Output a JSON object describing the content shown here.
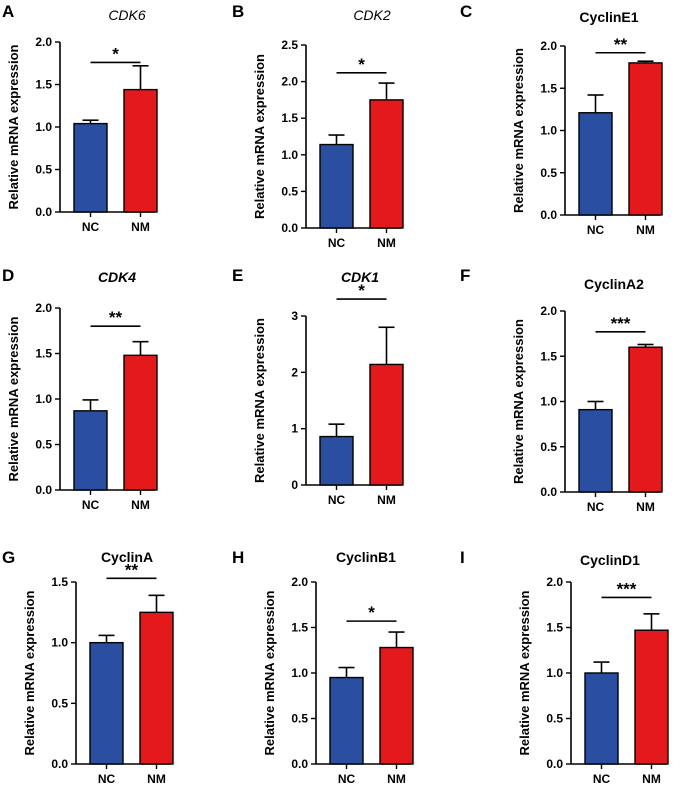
{
  "figure": {
    "title": ""
  },
  "colors": {
    "NC": "#2a4ea0",
    "NM": "#e3191c",
    "axis": "#000000"
  },
  "chart_data": [
    {
      "panel": "A",
      "type": "bar",
      "title": "CDK6",
      "title_style": "italic",
      "categories": [
        "NC",
        "NM"
      ],
      "values": [
        1.04,
        1.44
      ],
      "errors": [
        0.04,
        0.28
      ],
      "ylabel": "Relative mRNA expression",
      "ylim": [
        0,
        2.0
      ],
      "yticks": [
        0.0,
        0.5,
        1.0,
        1.5,
        2.0
      ],
      "yticklabels": [
        "0.0",
        "0.5",
        "1.0",
        "1.5",
        "2.0"
      ],
      "significance": "*",
      "sig_y": 1.76
    },
    {
      "panel": "B",
      "type": "bar",
      "title": "CDK2",
      "title_style": "italic",
      "categories": [
        "NC",
        "NM"
      ],
      "values": [
        1.14,
        1.75
      ],
      "errors": [
        0.13,
        0.23
      ],
      "ylabel": "Relative mRNA expression",
      "ylim": [
        0,
        2.5
      ],
      "yticks": [
        0.0,
        0.5,
        1.0,
        1.5,
        2.0,
        2.5
      ],
      "yticklabels": [
        "0.0",
        "0.5",
        "1.0",
        "1.5",
        "2.0",
        "2.5"
      ],
      "significance": "*",
      "sig_y": 2.12
    },
    {
      "panel": "C",
      "type": "bar",
      "title": "CyclinE1",
      "title_style": "bold",
      "categories": [
        "NC",
        "NM"
      ],
      "values": [
        1.21,
        1.8
      ],
      "errors": [
        0.21,
        0.02
      ],
      "ylabel": "Relative mRNA expression",
      "ylim": [
        0,
        2.0
      ],
      "yticks": [
        0.0,
        0.5,
        1.0,
        1.5,
        2.0
      ],
      "yticklabels": [
        "0.0",
        "0.5",
        "1.0",
        "1.5",
        "2.0"
      ],
      "significance": "**",
      "sig_y": 1.92
    },
    {
      "panel": "D",
      "type": "bar",
      "title": "CDK4",
      "title_style": "bold-italic",
      "categories": [
        "NC",
        "NM"
      ],
      "values": [
        0.87,
        1.48
      ],
      "errors": [
        0.12,
        0.15
      ],
      "ylabel": "Relative mRNA expression",
      "ylim": [
        0,
        2.0
      ],
      "yticks": [
        0.0,
        0.5,
        1.0,
        1.5,
        2.0
      ],
      "yticklabels": [
        "0.0",
        "0.5",
        "1.0",
        "1.5",
        "2.0"
      ],
      "significance": "**",
      "sig_y": 1.8
    },
    {
      "panel": "E",
      "type": "bar",
      "title": "CDK1",
      "title_style": "bold-italic",
      "categories": [
        "NC",
        "NM"
      ],
      "values": [
        0.86,
        2.14
      ],
      "errors": [
        0.22,
        0.66
      ],
      "ylabel": "Relative mRNA expression",
      "ylim": [
        0,
        3
      ],
      "yticks": [
        0,
        1,
        2,
        3
      ],
      "yticklabels": [
        "0",
        "1",
        "2",
        "3"
      ],
      "significance": "*",
      "sig_y": 3.3
    },
    {
      "panel": "F",
      "type": "bar",
      "title": "CyclinA2",
      "title_style": "bold",
      "categories": [
        "NC",
        "NM"
      ],
      "values": [
        0.91,
        1.6
      ],
      "errors": [
        0.09,
        0.03
      ],
      "ylabel": "Relative mRNA expression",
      "ylim": [
        0,
        2.0
      ],
      "yticks": [
        0.0,
        0.5,
        1.0,
        1.5,
        2.0
      ],
      "yticklabels": [
        "0.0",
        "0.5",
        "1.0",
        "1.5",
        "2.0"
      ],
      "significance": "***",
      "sig_y": 1.77
    },
    {
      "panel": "G",
      "type": "bar",
      "title": "CyclinA",
      "title_style": "bold",
      "categories": [
        "NC",
        "NM"
      ],
      "values": [
        1.0,
        1.25
      ],
      "errors": [
        0.06,
        0.14
      ],
      "ylabel": "Relative mRNA expression",
      "ylim": [
        0,
        1.5
      ],
      "yticks": [
        0.0,
        0.5,
        1.0,
        1.5
      ],
      "yticklabels": [
        "0.0",
        "0.5",
        "1.0",
        "1.5"
      ],
      "significance": "**",
      "sig_y": 1.53
    },
    {
      "panel": "H",
      "type": "bar",
      "title": "CyclinB1",
      "title_style": "bold",
      "categories": [
        "NC",
        "NM"
      ],
      "values": [
        0.95,
        1.28
      ],
      "errors": [
        0.11,
        0.17
      ],
      "ylabel": "Relative mRNA expression",
      "ylim": [
        0,
        2.0
      ],
      "yticks": [
        0.0,
        0.5,
        1.0,
        1.5,
        2.0
      ],
      "yticklabels": [
        "0.0",
        "0.5",
        "1.0",
        "1.5",
        "2.0"
      ],
      "significance": "*",
      "sig_y": 1.57
    },
    {
      "panel": "I",
      "type": "bar",
      "title": "CyclinD1",
      "title_style": "bold",
      "categories": [
        "NC",
        "NM"
      ],
      "values": [
        1.0,
        1.47
      ],
      "errors": [
        0.12,
        0.18
      ],
      "ylabel": "Relative mRNA expression",
      "ylim": [
        0,
        2.0
      ],
      "yticks": [
        0.0,
        0.5,
        1.0,
        1.5,
        2.0
      ],
      "yticklabels": [
        "0.0",
        "0.5",
        "1.0",
        "1.5",
        "2.0"
      ],
      "significance": "***",
      "sig_y": 1.83
    }
  ]
}
